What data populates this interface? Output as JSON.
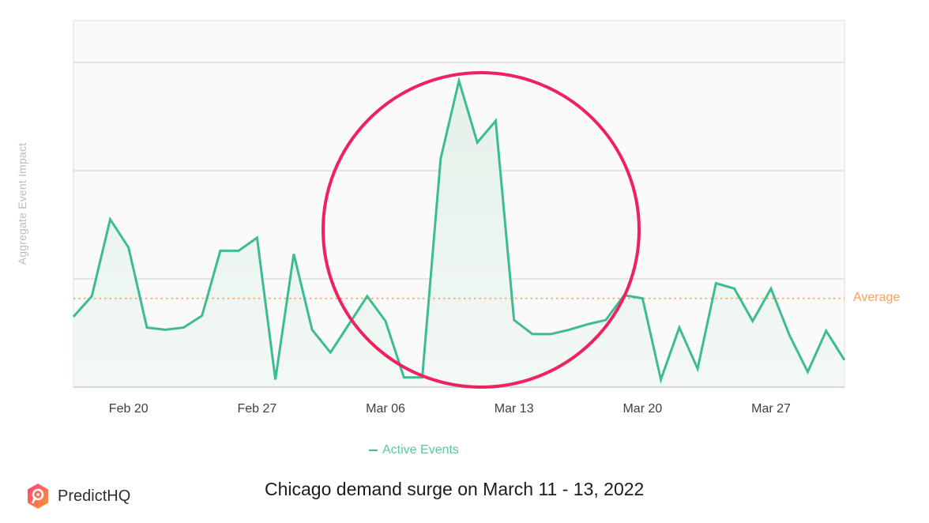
{
  "chart_data": {
    "type": "area",
    "title": "",
    "xlabel": "",
    "ylabel": "Aggregate Event Impact",
    "ylim": [
      0,
      339
    ],
    "y_units_note": "no y tick labels shown; values are relative (gridlines at 100, 200, 300)",
    "grid": true,
    "legend_position": "bottom",
    "x_tick_labels": [
      "Feb 20",
      "Feb 27",
      "Mar 06",
      "Mar 13",
      "Mar 20",
      "Mar 27"
    ],
    "x_tick_indices": [
      3,
      10,
      17,
      24,
      31,
      38
    ],
    "x": [
      "Feb 17",
      "Feb 18",
      "Feb 19",
      "Feb 20",
      "Feb 21",
      "Feb 22",
      "Feb 23",
      "Feb 24",
      "Feb 25",
      "Feb 26",
      "Feb 27",
      "Feb 28",
      "Mar 01",
      "Mar 02",
      "Mar 03",
      "Mar 04",
      "Mar 05",
      "Mar 06",
      "Mar 07",
      "Mar 08",
      "Mar 09",
      "Mar 10",
      "Mar 11",
      "Mar 12",
      "Mar 13",
      "Mar 14",
      "Mar 15",
      "Mar 16",
      "Mar 17",
      "Mar 18",
      "Mar 19",
      "Mar 20",
      "Mar 21",
      "Mar 22",
      "Mar 23",
      "Mar 24",
      "Mar 25",
      "Mar 26",
      "Mar 27",
      "Mar 28",
      "Mar 29",
      "Mar 30",
      "Mar 31"
    ],
    "series": [
      {
        "name": "Active Events",
        "color": "#3dbb94",
        "values": [
          65,
          84,
          155,
          129,
          55,
          53,
          55,
          66,
          126,
          126,
          138,
          7,
          123,
          53,
          32,
          58,
          84,
          61,
          9,
          9,
          211,
          283,
          226,
          246,
          62,
          49,
          49,
          53,
          58,
          62,
          85,
          82,
          7,
          55,
          17,
          96,
          91,
          61,
          91,
          48,
          14,
          52,
          25
        ]
      }
    ],
    "reference_lines": [
      {
        "name": "Average",
        "value": 82,
        "color": "#f5a25a",
        "style": "dotted"
      }
    ],
    "annotations": [
      {
        "type": "circle",
        "color": "#f0225e",
        "highlight": "Mar 09 - Mar 14 spike"
      }
    ]
  },
  "labels": {
    "ylabel": "Aggregate Event Impact",
    "average": "Average",
    "legend": "Active Events",
    "caption": "Chicago demand surge on March 11 - 13, 2022",
    "brand": "PredictHQ"
  },
  "colors": {
    "line": "#3dbb94",
    "fill": "#e9f4ee",
    "average": "#f5a25a",
    "highlight_circle": "#f0225e",
    "grid": "#d4d6da",
    "plot_bg": "#fafafa"
  }
}
